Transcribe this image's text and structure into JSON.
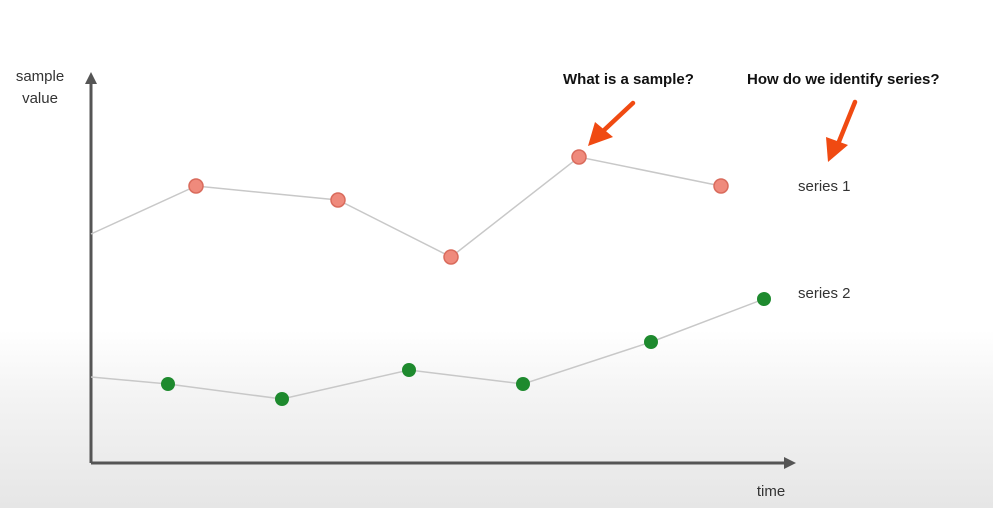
{
  "diagram": {
    "y_axis_label_line1": "sample",
    "y_axis_label_line2": "value",
    "x_axis_label": "time",
    "question_sample": "What is a sample?",
    "question_series": "How do we identify series?",
    "series_1_label": "series 1",
    "series_2_label": "series 2",
    "colors": {
      "series_1_point": "#ef8a7c",
      "series_1_point_stroke": "#d96b5c",
      "series_2_point": "#1e8a2e",
      "line": "#c8c8c8",
      "axis": "#555555",
      "arrow_accent": "#f04a12"
    }
  }
}
